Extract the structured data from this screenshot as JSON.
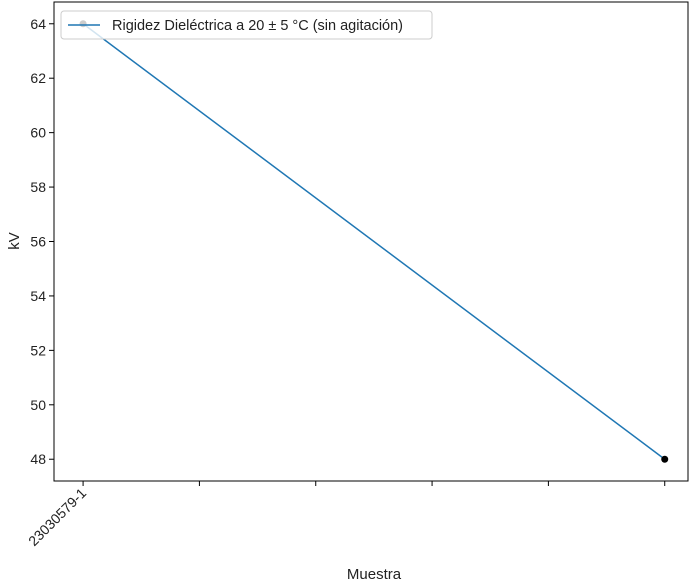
{
  "chart_data": {
    "type": "line",
    "x_categories": [
      "23030579-1",
      "",
      "",
      "",
      "",
      ""
    ],
    "series": [
      {
        "name": "Rigidez Dieléctrica a 20 ± 5 °C (sin agitación)",
        "color": "#1f77b4",
        "points": [
          {
            "x_index": 0,
            "y": 64
          },
          {
            "x_index": 5,
            "y": 48
          }
        ]
      }
    ],
    "yticks": [
      48,
      50,
      52,
      54,
      56,
      58,
      60,
      62,
      64
    ],
    "ylim": [
      47.2,
      64.8
    ],
    "xlim": [
      -0.25,
      5.2
    ],
    "xlabel": "Muestra",
    "ylabel": "kV",
    "legend_position": "top-left",
    "marker_color": "#000000",
    "grid": false
  }
}
